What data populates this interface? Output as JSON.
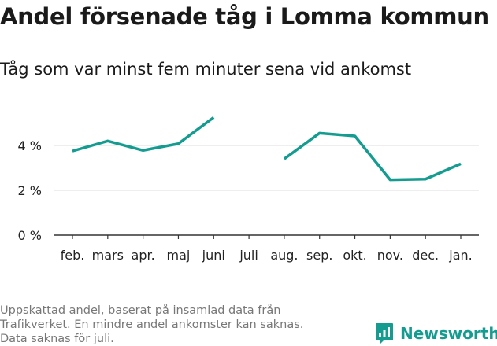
{
  "chart_data": {
    "type": "line",
    "title": "Andel försenade tåg i Lomma kommun",
    "subtitle": "Tåg som var minst fem minuter sena vid ankomst",
    "categories": [
      "feb.",
      "mars",
      "apr.",
      "maj",
      "juni",
      "juli",
      "aug.",
      "sep.",
      "okt.",
      "nov.",
      "dec.",
      "jan."
    ],
    "values": [
      3.75,
      4.2,
      3.78,
      4.08,
      5.25,
      null,
      3.4,
      4.55,
      4.42,
      2.47,
      2.5,
      3.18
    ],
    "y_ticks": [
      {
        "value": 0,
        "label": "0 %"
      },
      {
        "value": 2,
        "label": "2 %"
      },
      {
        "value": 4,
        "label": "4 %"
      }
    ],
    "ylim": [
      0,
      6
    ],
    "line_color": "#149c90",
    "grid_color": "#e3e3e3",
    "axis_color": "#333333",
    "grid": true
  },
  "footnote": [
    "Uppskattad andel, baserat på insamlad data från",
    "Trafikverket. En mindre andel ankomster kan saknas.",
    "Data saknas för juli."
  ],
  "brand": {
    "name": "Newsworthy",
    "icon": "newsworthy-logo-icon",
    "color": "#149c90"
  }
}
